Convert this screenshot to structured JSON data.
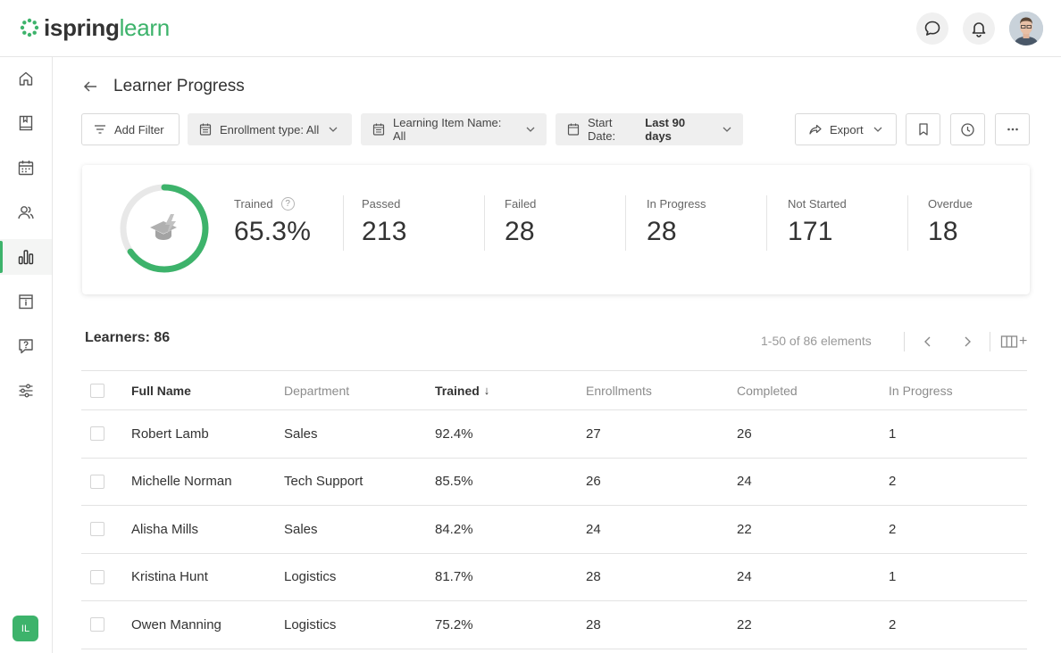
{
  "app": {
    "logo_part1": "ispring",
    "logo_part2": "learn",
    "user_initials": "IL"
  },
  "colors": {
    "accent": "#3db36b",
    "ring_track": "#e6e6e6"
  },
  "topbar": {
    "icons": [
      "chat-bubble-icon",
      "bell-icon"
    ]
  },
  "sidebar": {
    "items": [
      {
        "icon": "home-icon"
      },
      {
        "icon": "book-icon"
      },
      {
        "icon": "calendar-icon"
      },
      {
        "icon": "users-icon"
      },
      {
        "icon": "bar-chart-icon",
        "active": true
      },
      {
        "icon": "info-card-icon"
      },
      {
        "icon": "question-icon"
      },
      {
        "icon": "sliders-icon"
      }
    ]
  },
  "header": {
    "title": "Learner Progress"
  },
  "filters": {
    "add_filter": "Add Filter",
    "enrollment": "Enrollment type: All",
    "learning_item": "Learning Item Name: All",
    "start_date_label": "Start Date:",
    "start_date_value": "Last 90 days",
    "export": "Export"
  },
  "stats": {
    "trained_fraction": 0.653,
    "trained_label": "Trained",
    "trained_value": "65.3%",
    "help": "?",
    "passed_label": "Passed",
    "passed_value": "213",
    "failed_label": "Failed",
    "failed_value": "28",
    "in_progress_label": "In Progress",
    "in_progress_value": "28",
    "not_started_label": "Not Started",
    "not_started_value": "171",
    "overdue_label": "Overdue",
    "overdue_value": "18"
  },
  "learners": {
    "title": "Learners: 86",
    "pagination": "1-50 of 86 elements",
    "columns_plus": "+"
  },
  "table": {
    "columns": [
      "Full Name",
      "Department",
      "Trained",
      "Enrollments",
      "Completed",
      "In Progress"
    ],
    "sort_indicator": "↓",
    "rows": [
      [
        "Robert Lamb",
        "Sales",
        "92.4%",
        "27",
        "26",
        "1"
      ],
      [
        "Michelle Norman",
        "Tech Support",
        "85.5%",
        "26",
        "24",
        "2"
      ],
      [
        "Alisha Mills",
        "Sales",
        "84.2%",
        "24",
        "22",
        "2"
      ],
      [
        "Kristina Hunt",
        "Logistics",
        "81.7%",
        "28",
        "24",
        "1"
      ],
      [
        "Owen Manning",
        "Logistics",
        "75.2%",
        "28",
        "22",
        "2"
      ]
    ]
  }
}
